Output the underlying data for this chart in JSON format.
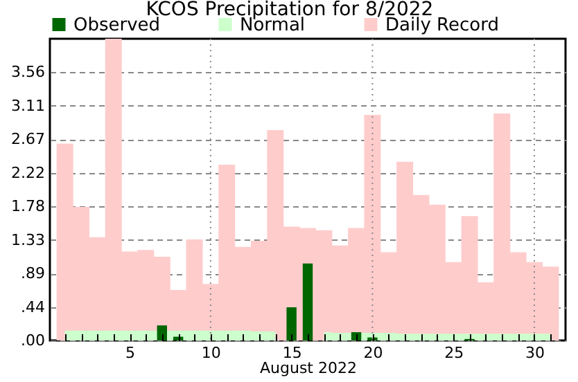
{
  "chart_data": {
    "type": "bar",
    "title": "KCOS Precipitation for 8/2022",
    "xlabel": "August 2022",
    "x": [
      1,
      2,
      3,
      4,
      5,
      6,
      7,
      8,
      9,
      10,
      11,
      12,
      13,
      14,
      15,
      16,
      17,
      18,
      19,
      20,
      21,
      22,
      23,
      24,
      25,
      26,
      27,
      28,
      29,
      30,
      31
    ],
    "series": [
      {
        "name": "Observed",
        "color": "#006600",
        "values": [
          0,
          0,
          0,
          0,
          0,
          0,
          0.2,
          0.05,
          0,
          0,
          0,
          0,
          0,
          0,
          0.44,
          1.02,
          0,
          0,
          0.11,
          0.04,
          0,
          0,
          0,
          0,
          0,
          0.02,
          0,
          0,
          0,
          0,
          0
        ]
      },
      {
        "name": "Normal",
        "type": "area",
        "color": "#ccffcc",
        "values": [
          0.13,
          0.13,
          0.13,
          0.13,
          0.13,
          0.13,
          0.13,
          0.13,
          0.13,
          0.13,
          0.13,
          0.13,
          0.12,
          0.12,
          null,
          null,
          0.11,
          0.1,
          0.1,
          0.1,
          0.1,
          0.09,
          0.09,
          0.09,
          0.09,
          0.09,
          0.09,
          0.09,
          0.09,
          0.09,
          0.09
        ]
      },
      {
        "name": "Daily Record",
        "color": "#ffcccc",
        "values": [
          2.61,
          1.77,
          1.37,
          4.0,
          1.18,
          1.2,
          1.11,
          0.67,
          1.34,
          0.75,
          2.33,
          1.24,
          1.32,
          2.79,
          1.51,
          1.49,
          1.46,
          1.26,
          1.49,
          2.99,
          1.17,
          2.37,
          1.93,
          1.8,
          1.04,
          1.65,
          0.77,
          3.01,
          1.17,
          1.04,
          0.98
        ]
      }
    ],
    "xlim": [
      0.5,
      31.5
    ],
    "xticks": [
      {
        "value": 1,
        "label": null
      },
      {
        "value": 2,
        "label": null
      },
      {
        "value": 3,
        "label": null
      },
      {
        "value": 4,
        "label": null
      },
      5,
      {
        "value": 6,
        "label": null
      },
      {
        "value": 7,
        "label": null
      },
      {
        "value": 8,
        "label": null
      },
      {
        "value": 9,
        "label": null
      },
      10,
      {
        "value": 11,
        "label": null
      },
      {
        "value": 12,
        "label": null
      },
      {
        "value": 13,
        "label": null
      },
      {
        "value": 14,
        "label": null
      },
      15,
      {
        "value": 16,
        "label": null
      },
      {
        "value": 17,
        "label": null
      },
      {
        "value": 18,
        "label": null
      },
      {
        "value": 19,
        "label": null
      },
      20,
      {
        "value": 21,
        "label": null
      },
      {
        "value": 22,
        "label": null
      },
      {
        "value": 23,
        "label": null
      },
      {
        "value": 24,
        "label": null
      },
      25,
      {
        "value": 26,
        "label": null
      },
      {
        "value": 27,
        "label": null
      },
      {
        "value": 28,
        "label": null
      },
      {
        "value": 29,
        "label": null
      },
      30,
      {
        "value": 31,
        "label": null
      }
    ],
    "ylim": [
      0,
      4.0
    ],
    "yticks": [
      {
        "value": 0,
        "label": ".00"
      },
      {
        "value": 0.444,
        "label": ".44"
      },
      {
        "value": 0.889,
        "label": ".89"
      },
      {
        "value": 1.333,
        "label": "1.33"
      },
      {
        "value": 1.778,
        "label": "1.78"
      },
      {
        "value": 2.222,
        "label": "2.22"
      },
      {
        "value": 2.667,
        "label": "2.67"
      },
      {
        "value": 3.111,
        "label": "3.11"
      },
      {
        "value": 3.556,
        "label": "3.56"
      }
    ],
    "grid": "y",
    "legend": "top",
    "ref_lines": [
      {
        "axis": "x",
        "value": 10,
        "line_style": "dotted",
        "color": "#888888"
      },
      {
        "axis": "x",
        "value": 20,
        "line_style": "dotted",
        "color": "#888888"
      },
      {
        "axis": "x",
        "value": 30,
        "line_style": "dotted",
        "color": "#888888"
      }
    ]
  }
}
